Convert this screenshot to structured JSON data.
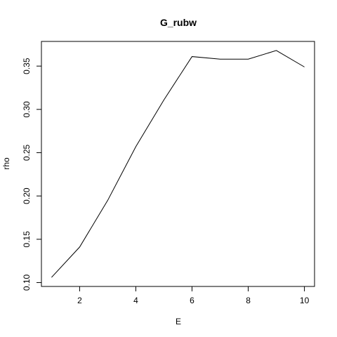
{
  "chart_data": {
    "type": "line",
    "title": "G_rubw",
    "xlabel": "E",
    "ylabel": "rho",
    "x": [
      1,
      2,
      3,
      4,
      5,
      6,
      7,
      8,
      9,
      10
    ],
    "series": [
      {
        "values": [
          0.106,
          0.141,
          0.195,
          0.257,
          0.311,
          0.361,
          0.358,
          0.358,
          0.368,
          0.349
        ]
      }
    ],
    "xlim": [
      0.64,
      10.36
    ],
    "ylim": [
      0.0955,
      0.3785
    ],
    "xticks": [
      2,
      4,
      6,
      8,
      10
    ],
    "xtick_labels": [
      "2",
      "4",
      "6",
      "8",
      "10"
    ],
    "yticks": [
      0.1,
      0.15,
      0.2,
      0.25,
      0.3,
      0.35
    ],
    "ytick_labels": [
      "0.10",
      "0.15",
      "0.20",
      "0.25",
      "0.30",
      "0.35"
    ],
    "grid": false,
    "line_color": "#000000"
  }
}
